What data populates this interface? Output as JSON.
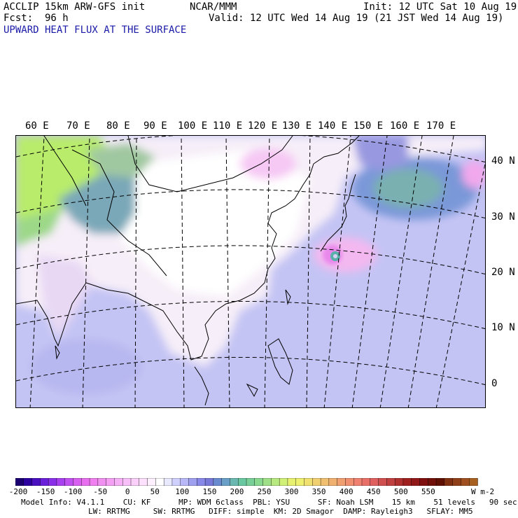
{
  "header": {
    "model_line": "ACCLIP 15km ARW-GFS init",
    "center": "NCAR/MMM",
    "init": "Init: 12 UTC Sat 10 Aug 19",
    "fcst_label": "Fcst:",
    "fcst_value": "96 h",
    "valid": "Valid: 12 UTC Wed 14 Aug 19 (21 JST Wed 14 Aug 19)",
    "field_title": "UPWARD HEAT FLUX AT THE SURFACE"
  },
  "map": {
    "longitude_labels": [
      "60 E",
      "70 E",
      "80 E",
      "90 E",
      "100 E",
      "110 E",
      "120 E",
      "130 E",
      "140 E",
      "150 E",
      "160 E",
      "170 E"
    ],
    "latitude_labels": [
      "40 N",
      "30 N",
      "20 N",
      "10 N",
      "0"
    ]
  },
  "colorbar": {
    "tick_labels": [
      "-200",
      "-150",
      "-100",
      "-50",
      "0",
      "50",
      "100",
      "150",
      "200",
      "250",
      "300",
      "350",
      "400",
      "450",
      "500",
      "550"
    ],
    "units": "W m-2",
    "colors": [
      "#1a0070",
      "#2d00a0",
      "#4a10c0",
      "#6a20d8",
      "#8a30e8",
      "#a840f0",
      "#c050f0",
      "#d860f0",
      "#e870f0",
      "#f080f0",
      "#f090f0",
      "#f4a0f4",
      "#f6b0f6",
      "#f8c0f8",
      "#fad0fa",
      "#fce0fc",
      "#fef0fe",
      "#ffffff",
      "#e8e8ff",
      "#d0d0ff",
      "#b8b8f8",
      "#a0a0f0",
      "#8888e8",
      "#7878d8",
      "#6a8ad0",
      "#6aa0c8",
      "#6ab8b0",
      "#6ac8a0",
      "#78d098",
      "#88d890",
      "#a0e088",
      "#b8e880",
      "#d0f078",
      "#e8f070",
      "#f0f070",
      "#f0e070",
      "#f0d070",
      "#f0c070",
      "#f0b070",
      "#f0a070",
      "#f09070",
      "#f08070",
      "#e87068",
      "#e06060",
      "#d05050",
      "#c04040",
      "#b03030",
      "#a02020",
      "#901818",
      "#801010",
      "#701008",
      "#601000",
      "#803010",
      "#904018",
      "#a05020",
      "#a86020"
    ]
  },
  "model_info": {
    "line1": "Model Info: V4.1.1    CU: KF      MP: WDM 6class  PBL: YSU      SF: Noah LSM    15 km    51 levels   90 sec",
    "line2": "LW: RRTMG     SW: RRTMG   DIFF: simple  KM: 2D Smagor  DAMP: Rayleigh3   SFLAY: MM5"
  }
}
